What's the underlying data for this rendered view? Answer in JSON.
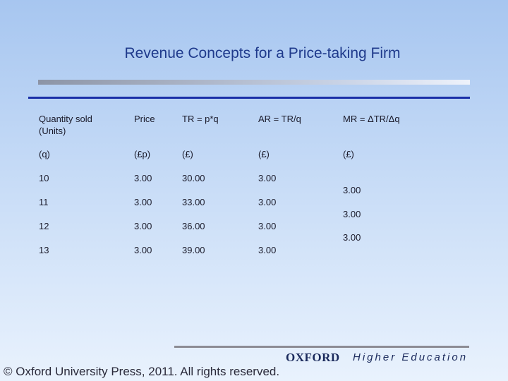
{
  "title": "Revenue Concepts for a Price-taking Firm",
  "table": {
    "header": [
      [
        "Quantity sold",
        "(Units)"
      ],
      "Price",
      "TR = p*q",
      "AR = TR/q",
      "MR = ΔTR/Δq"
    ],
    "units": [
      "(q)",
      "(£p)",
      "(£)",
      "(£)",
      "(£)"
    ],
    "rows": [
      [
        "10",
        "3.00",
        "30.00",
        "3.00"
      ],
      [
        "11",
        "3.00",
        "33.00",
        "3.00"
      ],
      [
        "12",
        "3.00",
        "36.00",
        "3.00"
      ],
      [
        "13",
        "3.00",
        "39.00",
        "3.00"
      ]
    ],
    "mr_values": [
      "3.00",
      "3.00",
      "3.00"
    ]
  },
  "footer": {
    "copyright": "© Oxford University Press, 2011. All rights reserved.",
    "publisher": "OXFORD",
    "imprint": "Higher Education"
  }
}
